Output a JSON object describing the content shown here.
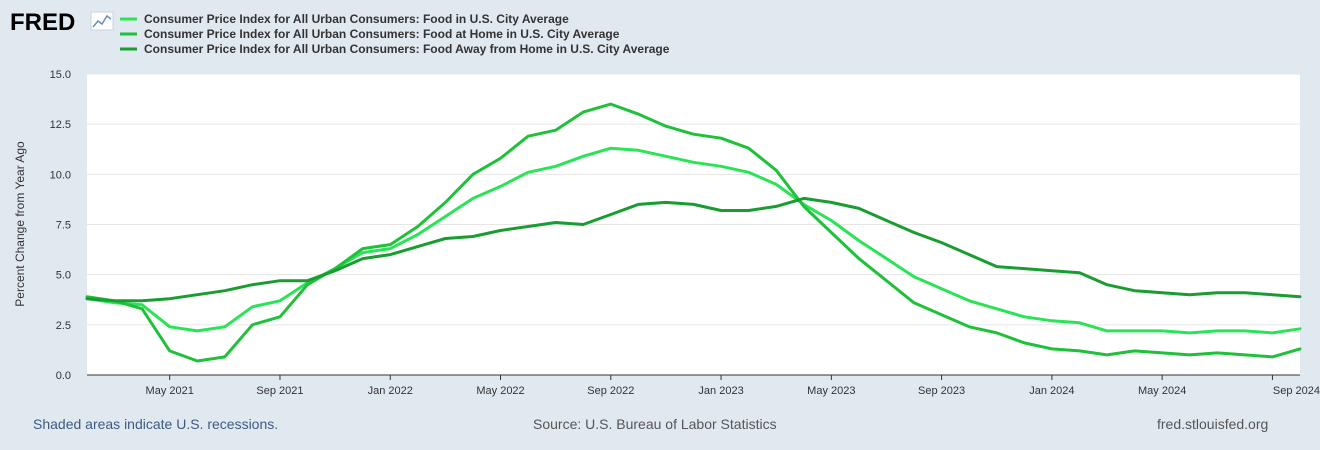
{
  "logo": {
    "text": "FRED"
  },
  "footer": {
    "recession_note": "Shaded areas indicate U.S. recessions.",
    "source": "Source: U.S. Bureau of Labor Statistics",
    "site": "fred.stlouisfed.org"
  },
  "colors": {
    "background": "#e1e9f0",
    "plot_background": "#ffffff",
    "gridline": "#e6e6e6"
  },
  "chart_data": {
    "type": "line",
    "title": "",
    "xlabel": "",
    "ylabel": "Percent Change from Year Ago",
    "x_start": "2021-02",
    "x_end": "2024-09",
    "ylim": [
      0,
      15
    ],
    "yticks": [
      {
        "value": 0,
        "label": "0.0"
      },
      {
        "value": 2.5,
        "label": "2.5"
      },
      {
        "value": 5,
        "label": "5.0"
      },
      {
        "value": 7.5,
        "label": "7.5"
      },
      {
        "value": 10,
        "label": "10.0"
      },
      {
        "value": 12.5,
        "label": "12.5"
      },
      {
        "value": 15,
        "label": "15.0"
      }
    ],
    "xticks": [
      {
        "month": 3,
        "label": "May 2021"
      },
      {
        "month": 7,
        "label": "Sep 2021"
      },
      {
        "month": 11,
        "label": "Jan 2022"
      },
      {
        "month": 15,
        "label": "May 2022"
      },
      {
        "month": 19,
        "label": "Sep 2022"
      },
      {
        "month": 23,
        "label": "Jan 2023"
      },
      {
        "month": 27,
        "label": "May 2023"
      },
      {
        "month": 31,
        "label": "Sep 2023"
      },
      {
        "month": 35,
        "label": "Jan 2024"
      },
      {
        "month": 39,
        "label": "May 2024"
      },
      {
        "month": 43,
        "label": "Sep 2024"
      }
    ],
    "grid": true,
    "series": [
      {
        "name": "Consumer Price Index for All Urban Consumers: Food in U.S. City Average",
        "color": "#2be356",
        "values": [
          3.8,
          3.6,
          3.5,
          2.4,
          2.2,
          2.4,
          3.4,
          3.7,
          4.6,
          5.3,
          6.1,
          6.3,
          7.0,
          7.9,
          8.8,
          9.4,
          10.1,
          10.4,
          10.9,
          11.3,
          11.2,
          10.9,
          10.6,
          10.4,
          10.1,
          9.5,
          8.5,
          7.7,
          6.7,
          5.8,
          4.9,
          4.3,
          3.7,
          3.3,
          2.9,
          2.7,
          2.6,
          2.2,
          2.2,
          2.2,
          2.1,
          2.2,
          2.2,
          2.1,
          2.3
        ]
      },
      {
        "name": "Consumer Price Index for All Urban Consumers: Food at Home in U.S. City Average",
        "color": "#1fc13a",
        "values": [
          3.9,
          3.7,
          3.3,
          1.2,
          0.7,
          0.9,
          2.5,
          2.9,
          4.5,
          5.3,
          6.3,
          6.5,
          7.4,
          8.6,
          10.0,
          10.8,
          11.9,
          12.2,
          13.1,
          13.5,
          13.0,
          12.4,
          12.0,
          11.8,
          11.3,
          10.2,
          8.4,
          7.1,
          5.8,
          4.7,
          3.6,
          3.0,
          2.4,
          2.1,
          1.6,
          1.3,
          1.2,
          1.0,
          1.2,
          1.1,
          1.0,
          1.1,
          1.0,
          0.9,
          1.3
        ]
      },
      {
        "name": "Consumer Price Index for All Urban Consumers: Food Away from Home in U.S. City Average",
        "color": "#199d31",
        "values": [
          3.8,
          3.7,
          3.7,
          3.8,
          4.0,
          4.2,
          4.5,
          4.7,
          4.7,
          5.2,
          5.8,
          6.0,
          6.4,
          6.8,
          6.9,
          7.2,
          7.4,
          7.6,
          7.5,
          8.0,
          8.5,
          8.6,
          8.5,
          8.2,
          8.2,
          8.4,
          8.8,
          8.6,
          8.3,
          7.7,
          7.1,
          6.6,
          6.0,
          5.4,
          5.3,
          5.2,
          5.1,
          4.5,
          4.2,
          4.1,
          4.0,
          4.1,
          4.1,
          4.0,
          3.9
        ]
      }
    ]
  }
}
